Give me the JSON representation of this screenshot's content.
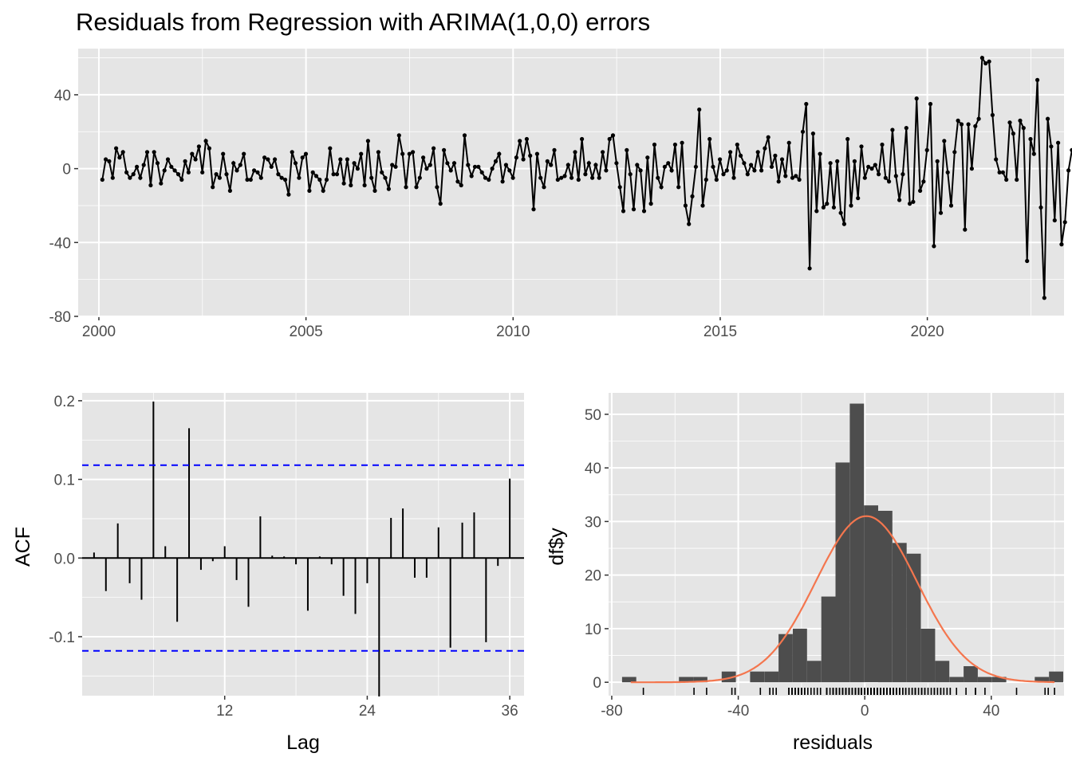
{
  "title": "Residuals from Regression with ARIMA(1,0,0) errors",
  "colors": {
    "panel": "#e5e5e5",
    "grid": "#ffffff",
    "series": "#000000",
    "bound": "#0000ff",
    "bar": "#4d4d4d",
    "density": "#f4764e"
  },
  "chart_data": [
    {
      "type": "line",
      "name": "residuals-time-series",
      "xlim": [
        1999.5,
        2023.3
      ],
      "ylim": [
        -80,
        65
      ],
      "x_ticks": [
        2000,
        2005,
        2010,
        2015,
        2020
      ],
      "y_ticks": [
        -80,
        -40,
        0,
        40
      ],
      "x_start": 2000.0833,
      "x_step": 0.0833,
      "values": [
        -6,
        5,
        4,
        -5,
        11,
        6,
        9,
        -2,
        -5,
        -3,
        1,
        -5,
        2,
        9,
        -9,
        9,
        3,
        -8,
        -1,
        5,
        1,
        -1,
        -3,
        -6,
        4,
        -2,
        8,
        5,
        12,
        -2,
        15,
        11,
        -10,
        -3,
        -5,
        8,
        -3,
        -12,
        3,
        -1,
        2,
        8,
        -6,
        -6,
        -1,
        -2,
        -5,
        6,
        5,
        1,
        5,
        -3,
        -5,
        -6,
        -14,
        9,
        3,
        -5,
        6,
        8,
        -12,
        -2,
        -4,
        -6,
        -12,
        -6,
        11,
        -3,
        -3,
        5,
        -8,
        5,
        -9,
        3,
        0,
        8,
        -9,
        15,
        -5,
        -12,
        9,
        -2,
        -5,
        -11,
        2,
        1,
        18,
        8,
        -10,
        8,
        9,
        -10,
        -5,
        6,
        0,
        2,
        11,
        -10,
        -19,
        10,
        3,
        -1,
        3,
        -7,
        -9,
        18,
        2,
        -4,
        1,
        1,
        -2,
        -5,
        -6,
        0,
        4,
        8,
        -7,
        2,
        -1,
        -5,
        6,
        15,
        5,
        16,
        7,
        -22,
        8,
        -5,
        -10,
        4,
        2,
        10,
        -6,
        -5,
        -4,
        2,
        -5,
        9,
        -6,
        16,
        -3,
        3,
        -5,
        2,
        -5,
        9,
        -1,
        16,
        18,
        3,
        -10,
        -23,
        10,
        -3,
        -22,
        2,
        -1,
        -23,
        6,
        -19,
        13,
        -5,
        -10,
        1,
        3,
        -1,
        13,
        -10,
        14,
        -20,
        -30,
        -15,
        1,
        32,
        -20,
        -6,
        16,
        1,
        -6,
        5,
        -3,
        -1,
        9,
        -5,
        13,
        7,
        3,
        -3,
        2,
        -1,
        9,
        -1,
        11,
        17,
        1,
        7,
        -7,
        5,
        -4,
        14,
        -5,
        -4,
        -6,
        20,
        35,
        -54,
        19,
        -23,
        8,
        -21,
        -19,
        3,
        -21,
        4,
        -24,
        -30,
        16,
        -20,
        4,
        -16,
        12,
        -5,
        1,
        0,
        2,
        -3,
        13,
        -5,
        -7,
        21,
        -4,
        -17,
        -3,
        22,
        -19,
        -18,
        38,
        -12,
        -7,
        10,
        35,
        -42,
        4,
        -24,
        15,
        -2,
        -20,
        9,
        26,
        24,
        -33,
        24,
        0,
        23,
        27,
        60,
        57,
        58,
        29,
        5,
        -2,
        -2,
        -6,
        25,
        19,
        -6,
        26,
        22,
        -50,
        16,
        8,
        48,
        -21,
        -70,
        27,
        12,
        -28,
        14,
        -41,
        -29,
        -1,
        10
      ]
    },
    {
      "type": "bar",
      "name": "acf",
      "xlabel": "Lag",
      "ylabel": "ACF",
      "xlim": [
        0,
        37.2
      ],
      "ylim": [
        -0.175,
        0.21
      ],
      "x_ticks": [
        12,
        24,
        36
      ],
      "y_ticks": [
        -0.1,
        0.0,
        0.1,
        0.2
      ],
      "lags": [
        1,
        2,
        3,
        4,
        5,
        6,
        7,
        8,
        9,
        10,
        11,
        12,
        13,
        14,
        15,
        16,
        17,
        18,
        19,
        20,
        21,
        22,
        23,
        24,
        25,
        26,
        27,
        28,
        29,
        30,
        31,
        32,
        33,
        34,
        35,
        36
      ],
      "values": [
        0.007,
        -0.042,
        0.044,
        -0.032,
        -0.053,
        0.199,
        0.015,
        -0.081,
        0.165,
        -0.015,
        -0.004,
        0.015,
        -0.028,
        -0.062,
        0.053,
        0.003,
        0.002,
        -0.008,
        -0.067,
        0.002,
        -0.008,
        -0.048,
        -0.071,
        -0.032,
        -0.176,
        0.051,
        0.063,
        -0.025,
        -0.025,
        0.039,
        -0.114,
        0.045,
        0.058,
        -0.107,
        -0.01,
        0.101
      ],
      "conf_bound": 0.118
    },
    {
      "type": "bar",
      "name": "histogram",
      "xlabel": "residuals",
      "ylabel": "df$y",
      "xlim": [
        -81,
        63
      ],
      "ylim": [
        -2.5,
        54
      ],
      "x_ticks": [
        -80,
        -40,
        0,
        40
      ],
      "y_ticks": [
        0,
        10,
        20,
        30,
        40,
        50
      ],
      "bin_width": 4.5,
      "bins": [
        {
          "x": -74.5,
          "count": 1
        },
        {
          "x": -70,
          "count": 0
        },
        {
          "x": -65.5,
          "count": 0
        },
        {
          "x": -61,
          "count": 0
        },
        {
          "x": -56.5,
          "count": 1
        },
        {
          "x": -52,
          "count": 1
        },
        {
          "x": -47.5,
          "count": 0
        },
        {
          "x": -43,
          "count": 2
        },
        {
          "x": -38.5,
          "count": 0
        },
        {
          "x": -34,
          "count": 2
        },
        {
          "x": -29.5,
          "count": 2
        },
        {
          "x": -25,
          "count": 9
        },
        {
          "x": -20.5,
          "count": 10
        },
        {
          "x": -16,
          "count": 4
        },
        {
          "x": -11.5,
          "count": 16
        },
        {
          "x": -7,
          "count": 41
        },
        {
          "x": -2.5,
          "count": 52
        },
        {
          "x": 2,
          "count": 33
        },
        {
          "x": 6.5,
          "count": 32
        },
        {
          "x": 11,
          "count": 26
        },
        {
          "x": 15.5,
          "count": 24
        },
        {
          "x": 20,
          "count": 10
        },
        {
          "x": 24.5,
          "count": 4
        },
        {
          "x": 29,
          "count": 1
        },
        {
          "x": 33.5,
          "count": 3
        },
        {
          "x": 38,
          "count": 1
        },
        {
          "x": 42.5,
          "count": 1
        },
        {
          "x": 47,
          "count": 0
        },
        {
          "x": 51.5,
          "count": 0
        },
        {
          "x": 56,
          "count": 1
        },
        {
          "x": 60.5,
          "count": 2
        }
      ],
      "density": {
        "mean": 0.5,
        "sd": 16,
        "peak": 31
      }
    }
  ]
}
